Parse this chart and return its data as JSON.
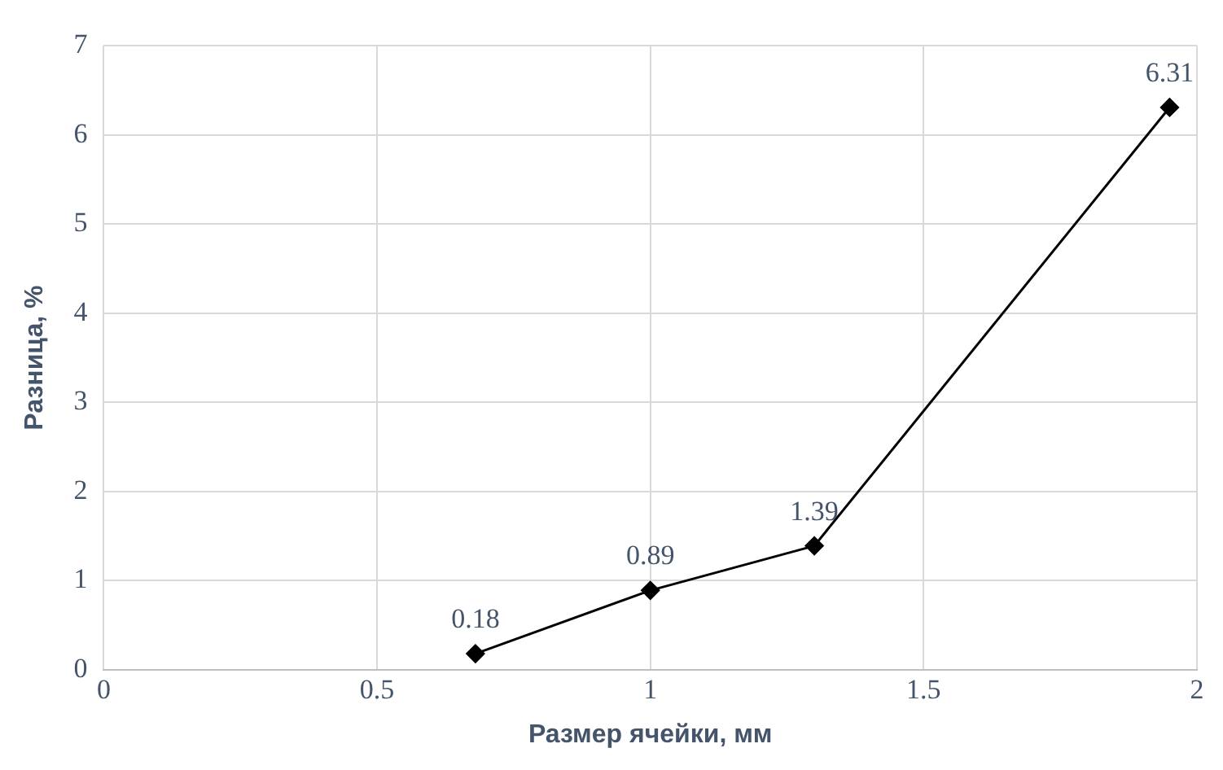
{
  "chart_data": {
    "type": "line",
    "xlabel": "Размер ячейки, мм",
    "ylabel": "Разница, %",
    "x": [
      0.68,
      1.0,
      1.3,
      1.95
    ],
    "series": [
      {
        "color": "#000000",
        "values": [
          0.18,
          0.89,
          1.39,
          6.31
        ]
      }
    ],
    "xlim": [
      0,
      2
    ],
    "xticks": [
      0,
      0.5,
      1,
      1.5,
      2
    ],
    "ylim": [
      0,
      7
    ],
    "yticks": [
      0,
      1,
      2,
      3,
      4,
      5,
      6,
      7
    ],
    "grid": true,
    "legend": false,
    "marker": "diamond",
    "line_style": "solid",
    "data_labels": true
  }
}
